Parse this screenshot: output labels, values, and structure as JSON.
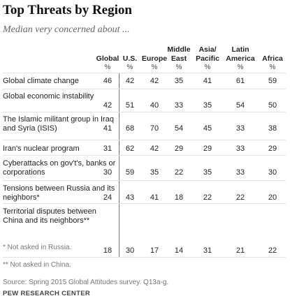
{
  "chart_data": {
    "type": "table",
    "title": "Top Threats by Region",
    "subtitle": "Median very concerned about ...",
    "unit_label": "%",
    "columns": [
      "Global",
      "U.S.",
      "Europe",
      "Middle East",
      "Asia/ Pacific",
      "Latin America",
      "Africa"
    ],
    "rows": [
      {
        "label": "Global climate change",
        "values": [
          46,
          42,
          42,
          35,
          41,
          61,
          59
        ]
      },
      {
        "label": "Global economic instability",
        "values": [
          42,
          51,
          40,
          33,
          35,
          54,
          50
        ]
      },
      {
        "label": "The Islamic militant group in Iraq and Syria (ISIS)",
        "values": [
          41,
          68,
          70,
          54,
          45,
          33,
          38
        ]
      },
      {
        "label": "Iran's nuclear program",
        "values": [
          31,
          62,
          42,
          29,
          29,
          33,
          29
        ]
      },
      {
        "label": "Cyberattacks on gov't's, banks or corporations",
        "values": [
          30,
          59,
          35,
          22,
          35,
          33,
          30
        ]
      },
      {
        "label": "Tensions between Russia and its neighbors*",
        "values": [
          24,
          43,
          41,
          18,
          22,
          22,
          20
        ]
      },
      {
        "label": "Territorial disputes between China and its neighbors**",
        "values": [
          18,
          30,
          17,
          14,
          31,
          21,
          22
        ]
      }
    ],
    "notes": [
      "* Not asked in Russia.",
      "** Not asked in China."
    ],
    "source": "Source: Spring 2015 Global Attitudes survey. Q13a-g.",
    "brand": "PEW RESEARCH CENTER"
  }
}
